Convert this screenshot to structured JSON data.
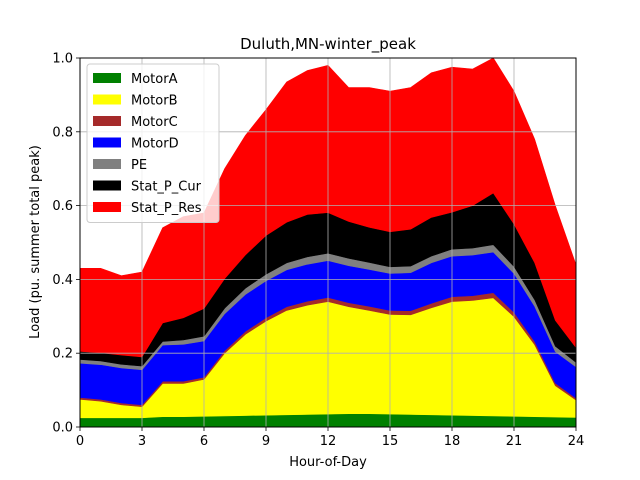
{
  "chart_data": {
    "type": "area",
    "stacked": true,
    "title": "Duluth,MN-winter_peak",
    "xlabel": "Hour-of-Day",
    "ylabel": "Load (pu. summer total peak)",
    "xlim": [
      0,
      24
    ],
    "ylim": [
      0,
      1.0
    ],
    "xticks": [
      0,
      3,
      6,
      9,
      12,
      15,
      18,
      21,
      24
    ],
    "yticks": [
      0.0,
      0.2,
      0.4,
      0.6,
      0.8,
      1.0
    ],
    "xtick_labels": [
      "0",
      "3",
      "6",
      "9",
      "12",
      "15",
      "18",
      "21",
      "24"
    ],
    "ytick_labels": [
      "0.0",
      "0.2",
      "0.4",
      "0.6",
      "0.8",
      "1.0"
    ],
    "grid": true,
    "legend_position": "top-left",
    "x": [
      0,
      1,
      2,
      3,
      4,
      5,
      6,
      7,
      8,
      9,
      10,
      11,
      12,
      13,
      14,
      15,
      16,
      17,
      18,
      19,
      20,
      21,
      22,
      23,
      24
    ],
    "series": [
      {
        "name": "MotorA",
        "color": "#008000",
        "values": [
          0.025,
          0.025,
          0.025,
          0.025,
          0.028,
          0.028,
          0.029,
          0.03,
          0.031,
          0.032,
          0.033,
          0.034,
          0.035,
          0.036,
          0.036,
          0.035,
          0.034,
          0.033,
          0.032,
          0.031,
          0.03,
          0.029,
          0.028,
          0.027,
          0.026
        ]
      },
      {
        "name": "MotorB",
        "color": "#ffff00",
        "values": [
          0.05,
          0.045,
          0.035,
          0.03,
          0.09,
          0.09,
          0.1,
          0.17,
          0.22,
          0.255,
          0.283,
          0.296,
          0.305,
          0.29,
          0.28,
          0.27,
          0.27,
          0.29,
          0.308,
          0.312,
          0.32,
          0.27,
          0.195,
          0.085,
          0.047
        ]
      },
      {
        "name": "MotorC",
        "color": "#a52a2a",
        "values": [
          0.005,
          0.005,
          0.005,
          0.005,
          0.006,
          0.006,
          0.006,
          0.007,
          0.008,
          0.009,
          0.01,
          0.011,
          0.011,
          0.011,
          0.011,
          0.011,
          0.011,
          0.012,
          0.013,
          0.013,
          0.014,
          0.012,
          0.009,
          0.007,
          0.005
        ]
      },
      {
        "name": "MotorD",
        "color": "#0000ff",
        "values": [
          0.093,
          0.094,
          0.095,
          0.095,
          0.098,
          0.1,
          0.098,
          0.1,
          0.1,
          0.1,
          0.1,
          0.1,
          0.1,
          0.1,
          0.1,
          0.1,
          0.103,
          0.11,
          0.11,
          0.11,
          0.11,
          0.105,
          0.095,
          0.085,
          0.085
        ]
      },
      {
        "name": "PE",
        "color": "#808080",
        "values": [
          0.01,
          0.01,
          0.01,
          0.01,
          0.01,
          0.012,
          0.013,
          0.015,
          0.017,
          0.018,
          0.019,
          0.02,
          0.02,
          0.02,
          0.019,
          0.018,
          0.018,
          0.018,
          0.019,
          0.019,
          0.02,
          0.019,
          0.018,
          0.015,
          0.012
        ]
      },
      {
        "name": "Stat_P_Cur",
        "color": "#000000",
        "values": [
          0.022,
          0.022,
          0.025,
          0.025,
          0.05,
          0.06,
          0.075,
          0.08,
          0.09,
          0.105,
          0.11,
          0.115,
          0.11,
          0.1,
          0.095,
          0.095,
          0.1,
          0.105,
          0.1,
          0.115,
          0.14,
          0.115,
          0.1,
          0.07,
          0.04
        ]
      },
      {
        "name": "Stat_P_Res",
        "color": "#ff0000",
        "values": [
          0.225,
          0.229,
          0.215,
          0.23,
          0.258,
          0.274,
          0.259,
          0.298,
          0.324,
          0.341,
          0.38,
          0.39,
          0.399,
          0.363,
          0.379,
          0.381,
          0.384,
          0.392,
          0.393,
          0.37,
          0.366,
          0.36,
          0.335,
          0.311,
          0.225
        ]
      }
    ]
  }
}
